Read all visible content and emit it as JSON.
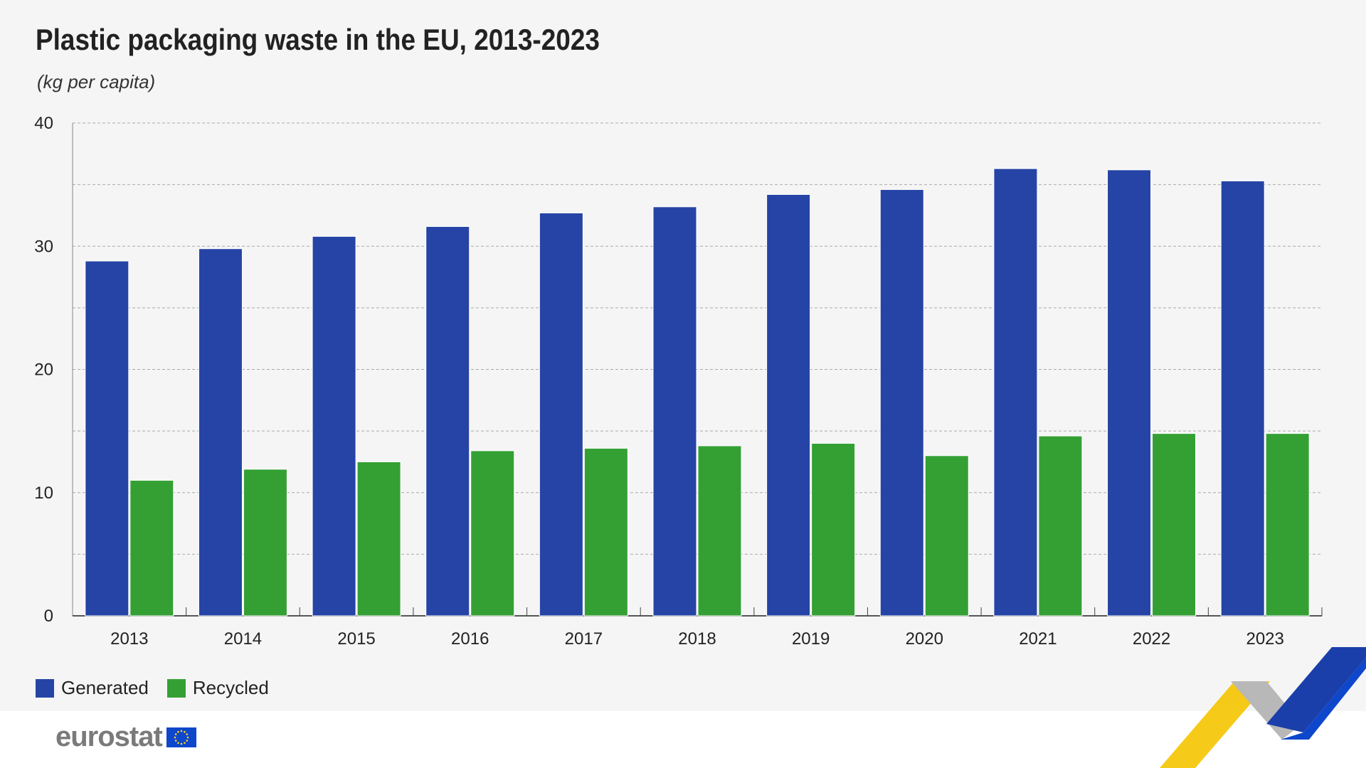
{
  "title": "Plastic packaging waste in the EU, 2013-2023",
  "subtitle": "(kg per capita)",
  "logo": "eurostat",
  "chart_data": {
    "type": "bar",
    "title": "Plastic packaging waste in the EU, 2013-2023",
    "ylabel": "kg per capita",
    "categories": [
      "2013",
      "2014",
      "2015",
      "2016",
      "2017",
      "2018",
      "2019",
      "2020",
      "2021",
      "2022",
      "2023"
    ],
    "series": [
      {
        "name": "Generated",
        "color": "#2644a6",
        "values": [
          28.8,
          29.8,
          30.8,
          31.6,
          32.7,
          33.2,
          34.2,
          34.6,
          36.3,
          36.2,
          35.3
        ]
      },
      {
        "name": "Recycled",
        "color": "#34a034",
        "values": [
          11.0,
          11.9,
          12.5,
          13.4,
          13.6,
          13.8,
          14.0,
          13.0,
          14.6,
          14.8,
          14.8
        ]
      }
    ],
    "ylim": [
      0,
      40
    ],
    "yticks": [
      0,
      10,
      20,
      30,
      40
    ],
    "grid": true,
    "legend": "bottom-left"
  }
}
